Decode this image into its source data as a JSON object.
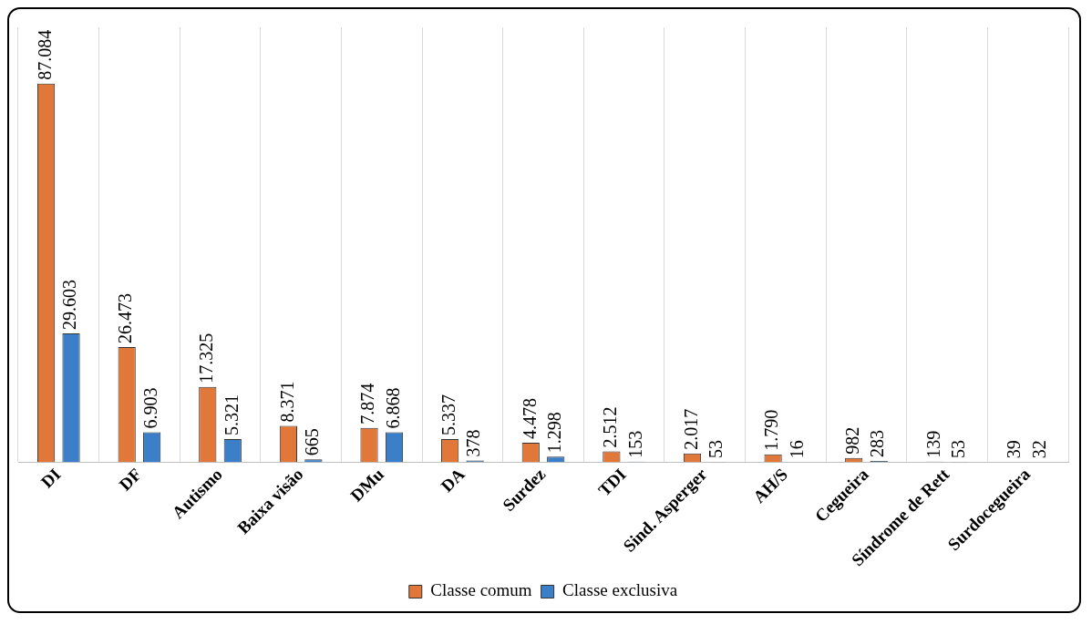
{
  "chart_data": {
    "type": "bar",
    "categories": [
      "DI",
      "DF",
      "Autismo",
      "Baixa visão",
      "DMu",
      "DA",
      "Surdez",
      "TDI",
      "Sind. Asperger",
      "AH/S",
      "Cegueira",
      "Síndrome de Rett",
      "Surdocegueira"
    ],
    "series": [
      {
        "name": "Classe comum",
        "color": "#e2773a",
        "values": [
          87084,
          26473,
          17325,
          8371,
          7874,
          5337,
          4478,
          2512,
          2017,
          1790,
          982,
          139,
          39
        ],
        "value_labels": [
          "87.084",
          "26.473",
          "17.325",
          "8.371",
          "7.874",
          "5.337",
          "4.478",
          "2.512",
          "2.017",
          "1.790",
          "982",
          "139",
          "39"
        ]
      },
      {
        "name": "Classe exclusiva",
        "color": "#3a7fc8",
        "values": [
          29603,
          6903,
          5321,
          665,
          6868,
          378,
          1298,
          153,
          53,
          16,
          283,
          53,
          32
        ],
        "value_labels": [
          "29.603",
          "6.903",
          "5.321",
          "665",
          "6.868",
          "378",
          "1.298",
          "153",
          "53",
          "16",
          "283",
          "53",
          "32"
        ]
      }
    ],
    "grid": "x",
    "legend": "bottom",
    "tick_labels": "x"
  }
}
